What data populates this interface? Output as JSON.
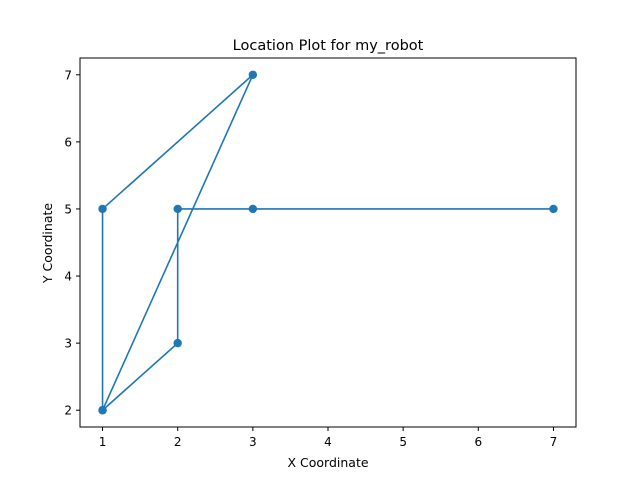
{
  "chart_data": {
    "type": "line",
    "title": "Location Plot for my_robot",
    "xlabel": "X Coordinate",
    "ylabel": "Y Coordinate",
    "xlim": [
      0.7,
      7.3
    ],
    "ylim": [
      1.75,
      7.25
    ],
    "xticks": [
      1,
      2,
      3,
      4,
      5,
      6,
      7
    ],
    "yticks": [
      2,
      3,
      4,
      5,
      6,
      7
    ],
    "grid": false,
    "series": [
      {
        "color": "#1f77b4",
        "marker": "circle",
        "points": [
          {
            "x": 7,
            "y": 5
          },
          {
            "x": 3,
            "y": 5
          },
          {
            "x": 2,
            "y": 5
          },
          {
            "x": 2,
            "y": 3
          },
          {
            "x": 1,
            "y": 2
          },
          {
            "x": 1,
            "y": 5
          },
          {
            "x": 3,
            "y": 7
          },
          {
            "x": 1,
            "y": 2
          }
        ]
      }
    ]
  }
}
